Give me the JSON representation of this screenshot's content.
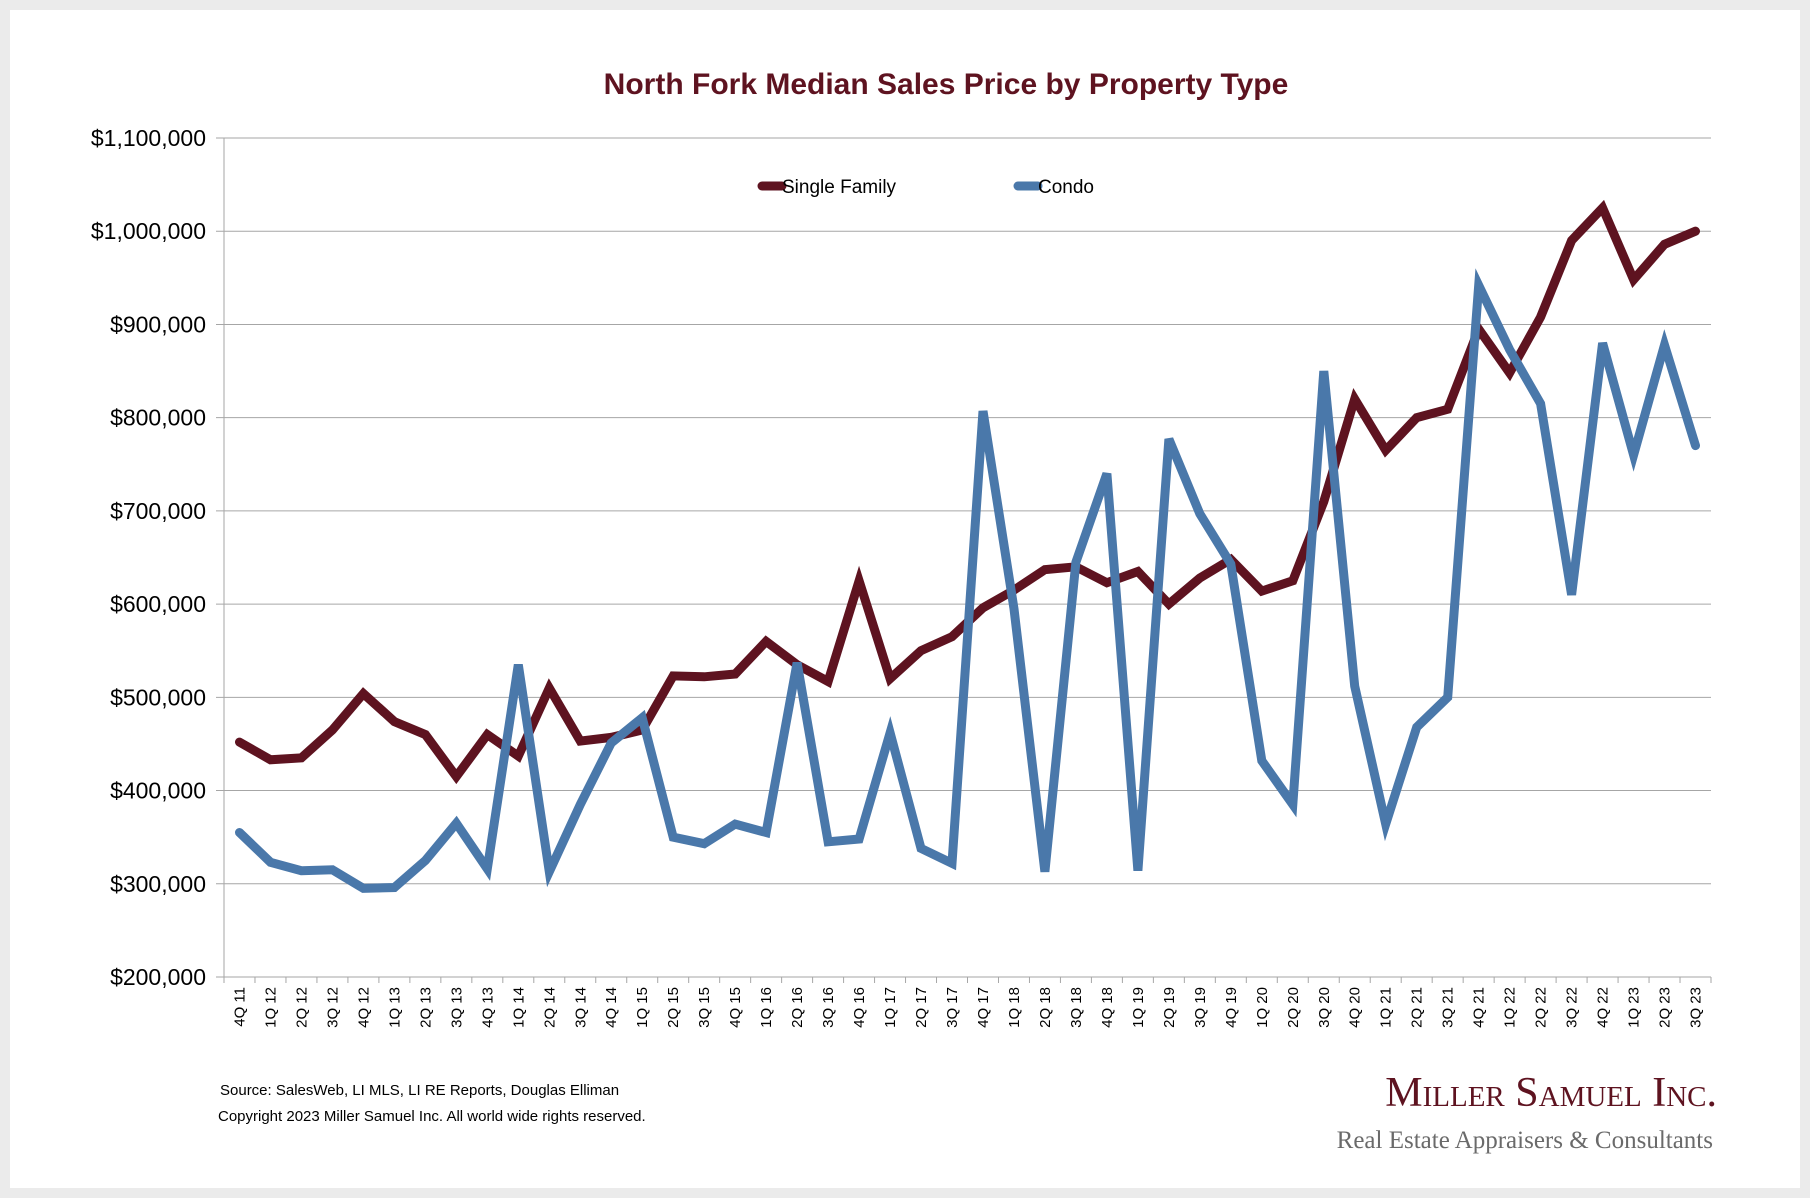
{
  "chart_data": {
    "type": "line",
    "title": "North Fork Median Sales Price by Property Type",
    "xlabel": "",
    "ylabel": "",
    "ylim": [
      200000,
      1100000
    ],
    "yticks": [
      "$200,000",
      "$300,000",
      "$400,000",
      "$500,000",
      "$600,000",
      "$700,000",
      "$800,000",
      "$900,000",
      "$1,000,000",
      "$1,100,000"
    ],
    "grid": "horizontal",
    "legend_position": "top-center",
    "categories": [
      "4Q 11",
      "1Q 12",
      "2Q 12",
      "3Q 12",
      "4Q 12",
      "1Q 13",
      "2Q 13",
      "3Q 13",
      "4Q 13",
      "1Q 14",
      "2Q 14",
      "3Q 14",
      "4Q 14",
      "1Q 15",
      "2Q 15",
      "3Q 15",
      "4Q 15",
      "1Q 16",
      "2Q 16",
      "3Q 16",
      "4Q 16",
      "1Q 17",
      "2Q 17",
      "3Q 17",
      "4Q 17",
      "1Q 18",
      "2Q 18",
      "3Q 18",
      "4Q 18",
      "1Q 19",
      "2Q 19",
      "3Q 19",
      "4Q 19",
      "1Q 20",
      "2Q 20",
      "3Q 20",
      "4Q 20",
      "1Q 21",
      "2Q 21",
      "3Q 21",
      "4Q 21",
      "1Q 22",
      "2Q 22",
      "3Q 22",
      "4Q 22",
      "1Q 23",
      "2Q 23",
      "3Q 23"
    ],
    "series": [
      {
        "name": "Single Family",
        "color": "#5e1320",
        "values": [
          452000,
          433000,
          435000,
          465000,
          504000,
          474000,
          460000,
          415000,
          460000,
          437000,
          510000,
          453000,
          457000,
          465000,
          523000,
          522000,
          525000,
          560000,
          535000,
          517000,
          625000,
          520000,
          550000,
          565000,
          596000,
          615000,
          637000,
          640000,
          623000,
          635000,
          600000,
          628000,
          648000,
          614000,
          625000,
          710000,
          820000,
          765000,
          800000,
          809000,
          895000,
          848000,
          908000,
          990000,
          1025000,
          948000,
          986000,
          1000000
        ]
      },
      {
        "name": "Condo",
        "color": "#4a78aa",
        "values": [
          355000,
          323000,
          314000,
          315000,
          295000,
          296000,
          325000,
          365000,
          316000,
          535000,
          313000,
          385000,
          451000,
          478000,
          350000,
          343000,
          364000,
          355000,
          537000,
          345000,
          348000,
          462000,
          338000,
          322000,
          807000,
          595000,
          313000,
          645000,
          740000,
          314000,
          777000,
          697000,
          643000,
          432000,
          385000,
          850000,
          512000,
          364000,
          468000,
          500000,
          942000,
          873000,
          815000,
          610000,
          880000,
          760000,
          878000,
          770000
        ]
      }
    ]
  },
  "footer": {
    "source": "Source: SalesWeb, LI MLS, LI RE Reports, Douglas Elliman",
    "copyright": "Copyright 2023 Miller Samuel Inc.  All world wide rights reserved."
  },
  "branding": {
    "name": "Miller Samuel Inc.",
    "tagline": "Real Estate Appraisers & Consultants"
  }
}
